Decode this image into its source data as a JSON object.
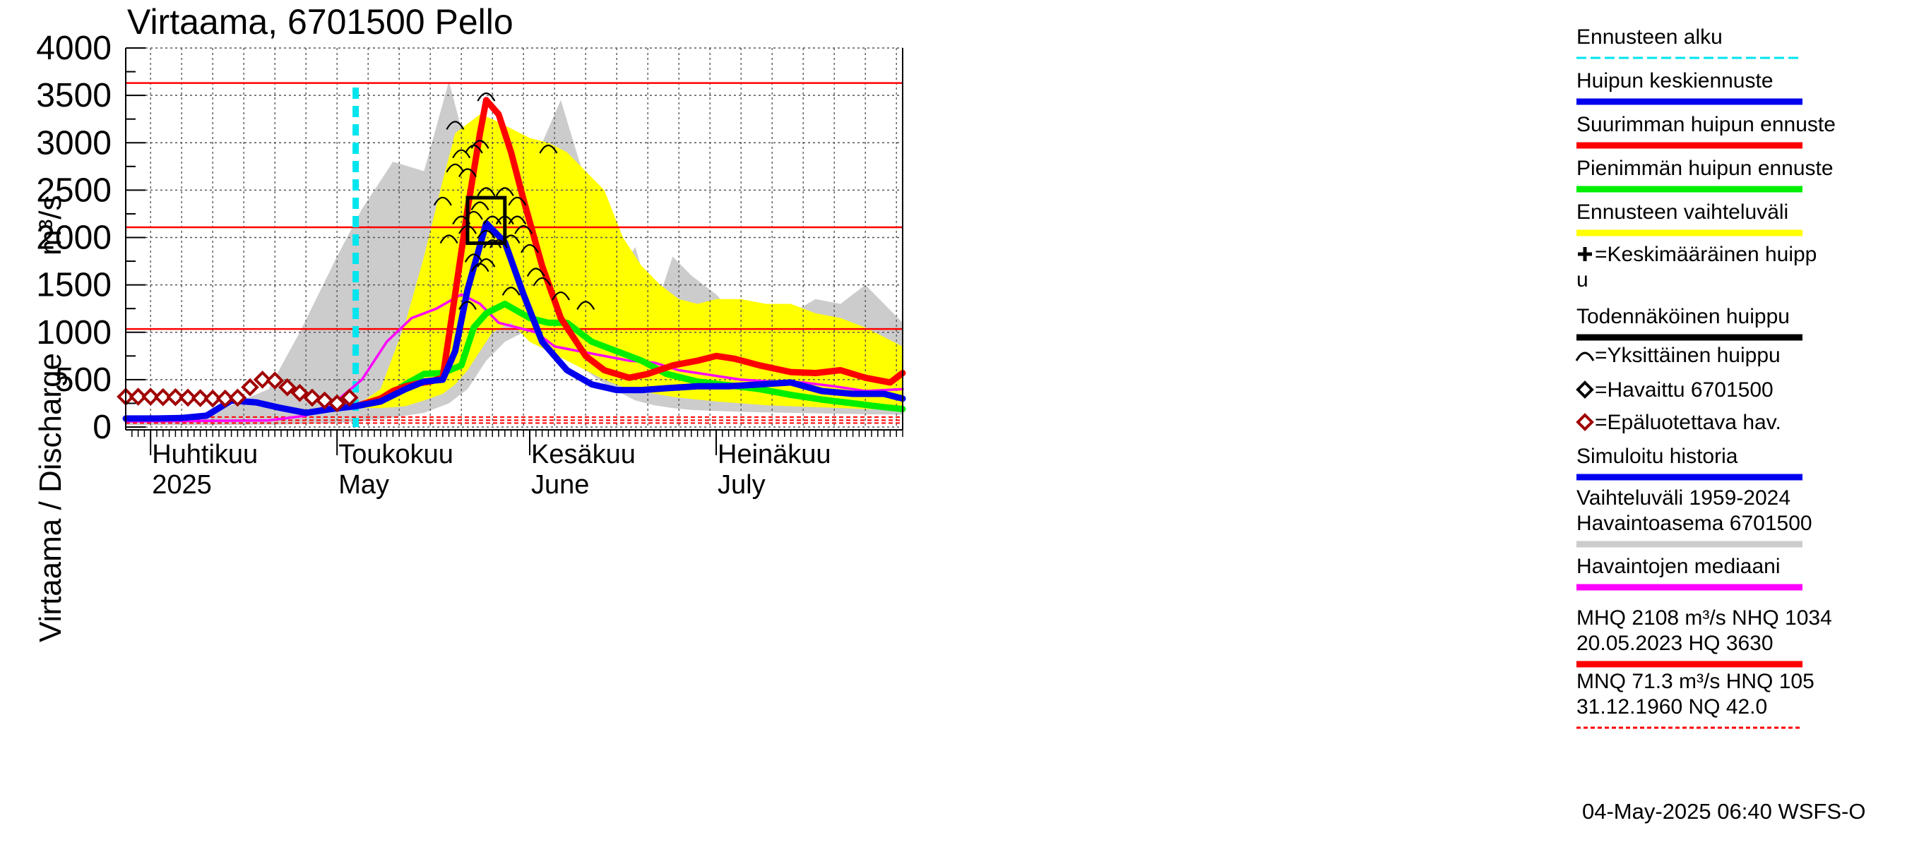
{
  "chart_data": {
    "type": "line",
    "title": "Virtaama, 6701500 Pello",
    "ylabel": "Virtaama / Discharge",
    "yunit": "m³/s",
    "ylim": [
      0,
      4000
    ],
    "yticks": [
      0,
      500,
      1000,
      1500,
      2000,
      2500,
      3000,
      3500,
      4000
    ],
    "xlim": [
      "2025-03-28",
      "2025-07-31"
    ],
    "month_labels": [
      {
        "fi": "Huhtikuu",
        "en": "2025",
        "date": "2025-04-01"
      },
      {
        "fi": "Toukokuu",
        "en": "May",
        "date": "2025-05-01"
      },
      {
        "fi": "Kesäkuu",
        "en": "June",
        "date": "2025-06-01"
      },
      {
        "fi": "Heinäkuu",
        "en": "July",
        "date": "2025-07-01"
      }
    ],
    "forecast_start": "2025-05-04",
    "reference_lines": [
      {
        "name": "HQ",
        "value": 3630
      },
      {
        "name": "MHQ",
        "value": 2108
      },
      {
        "name": "NHQ",
        "value": 1034
      },
      {
        "name": "HNQ",
        "value": 105
      },
      {
        "name": "MNQ",
        "value": 71.3
      },
      {
        "name": "NQ",
        "value": 42.0
      }
    ],
    "history_band": {
      "x": [
        "2025-03-28",
        "2025-04-10",
        "2025-04-20",
        "2025-04-25",
        "2025-05-01",
        "2025-05-05",
        "2025-05-10",
        "2025-05-15",
        "2025-05-19",
        "2025-05-22",
        "2025-05-25",
        "2025-05-28",
        "2025-05-31",
        "2025-06-03",
        "2025-06-06",
        "2025-06-09",
        "2025-06-12",
        "2025-06-15",
        "2025-06-18",
        "2025-06-21",
        "2025-06-24",
        "2025-06-27",
        "2025-07-01",
        "2025-07-05",
        "2025-07-09",
        "2025-07-13",
        "2025-07-17",
        "2025-07-21",
        "2025-07-25",
        "2025-07-31"
      ],
      "upper": [
        100,
        120,
        400,
        1000,
        1800,
        2300,
        2800,
        2700,
        3650,
        2900,
        2700,
        2800,
        2600,
        3000,
        3450,
        2800,
        2200,
        1600,
        1900,
        1200,
        1800,
        1600,
        1400,
        1100,
        1250,
        1200,
        1350,
        1300,
        1500,
        1100
      ],
      "lower": [
        20,
        20,
        25,
        30,
        40,
        60,
        100,
        150,
        250,
        400,
        700,
        900,
        1000,
        900,
        800,
        650,
        500,
        380,
        280,
        230,
        200,
        180,
        170,
        160,
        155,
        150,
        145,
        140,
        135,
        130
      ]
    },
    "forecast_band": {
      "x": [
        "2025-05-04",
        "2025-05-08",
        "2025-05-12",
        "2025-05-15",
        "2025-05-18",
        "2025-05-20",
        "2025-05-22",
        "2025-05-24",
        "2025-05-26",
        "2025-05-29",
        "2025-06-01",
        "2025-06-04",
        "2025-06-07",
        "2025-06-10",
        "2025-06-13",
        "2025-06-16",
        "2025-06-19",
        "2025-06-22",
        "2025-06-25",
        "2025-06-28",
        "2025-07-01",
        "2025-07-05",
        "2025-07-09",
        "2025-07-13",
        "2025-07-17",
        "2025-07-21",
        "2025-07-25",
        "2025-07-31"
      ],
      "upper": [
        220,
        400,
        1100,
        1800,
        2600,
        3100,
        3200,
        3300,
        3250,
        3150,
        3050,
        3000,
        2900,
        2700,
        2500,
        2000,
        1700,
        1500,
        1350,
        1300,
        1350,
        1350,
        1300,
        1300,
        1200,
        1150,
        1050,
        850
      ],
      "lower": [
        200,
        200,
        220,
        280,
        350,
        450,
        600,
        800,
        1000,
        1100,
        900,
        800,
        700,
        600,
        500,
        420,
        380,
        340,
        310,
        290,
        270,
        250,
        230,
        220,
        210,
        200,
        190,
        180
      ]
    },
    "series": [
      {
        "name": "Suurimman huipun ennuste",
        "color": "#ff0000",
        "x": [
          "2025-05-04",
          "2025-05-08",
          "2025-05-10",
          "2025-05-12",
          "2025-05-14",
          "2025-05-16",
          "2025-05-18",
          "2025-05-20",
          "2025-05-22",
          "2025-05-24",
          "2025-05-25",
          "2025-05-27",
          "2025-05-29",
          "2025-05-31",
          "2025-06-03",
          "2025-06-06",
          "2025-06-10",
          "2025-06-13",
          "2025-06-17",
          "2025-06-20",
          "2025-06-24",
          "2025-06-28",
          "2025-07-01",
          "2025-07-04",
          "2025-07-08",
          "2025-07-13",
          "2025-07-17",
          "2025-07-21",
          "2025-07-25",
          "2025-07-29",
          "2025-07-31"
        ],
        "y": [
          220,
          300,
          380,
          430,
          460,
          480,
          520,
          1400,
          2300,
          3100,
          3450,
          3300,
          2900,
          2400,
          1700,
          1150,
          750,
          600,
          520,
          560,
          650,
          700,
          750,
          720,
          650,
          580,
          570,
          600,
          520,
          470,
          570
        ]
      },
      {
        "name": "Huipun keskiennuste",
        "color": "#0000ee",
        "x": [
          "2025-03-28",
          "2025-04-02",
          "2025-04-06",
          "2025-04-10",
          "2025-04-14",
          "2025-04-18",
          "2025-04-22",
          "2025-04-26",
          "2025-04-30",
          "2025-05-04",
          "2025-05-08",
          "2025-05-12",
          "2025-05-15",
          "2025-05-18",
          "2025-05-20",
          "2025-05-22",
          "2025-05-25",
          "2025-05-28",
          "2025-05-31",
          "2025-06-03",
          "2025-06-07",
          "2025-06-11",
          "2025-06-15",
          "2025-06-19",
          "2025-06-23",
          "2025-06-28",
          "2025-07-03",
          "2025-07-08",
          "2025-07-13",
          "2025-07-18",
          "2025-07-23",
          "2025-07-28",
          "2025-07-31"
        ],
        "y": [
          90,
          90,
          95,
          120,
          280,
          260,
          200,
          150,
          190,
          220,
          270,
          400,
          480,
          500,
          800,
          1450,
          2150,
          1950,
          1400,
          900,
          600,
          450,
          390,
          390,
          410,
          430,
          430,
          450,
          470,
          380,
          350,
          350,
          300
        ]
      },
      {
        "name": "Pienimmän huipun ennuste",
        "color": "#00ee00",
        "x": [
          "2025-05-04",
          "2025-05-08",
          "2025-05-12",
          "2025-05-15",
          "2025-05-18",
          "2025-05-21",
          "2025-05-23",
          "2025-05-25",
          "2025-05-28",
          "2025-06-01",
          "2025-06-04",
          "2025-06-07",
          "2025-06-11",
          "2025-06-15",
          "2025-06-19",
          "2025-06-23",
          "2025-06-28",
          "2025-07-03",
          "2025-07-08",
          "2025-07-13",
          "2025-07-18",
          "2025-07-23",
          "2025-07-28",
          "2025-07-31"
        ],
        "y": [
          220,
          280,
          450,
          560,
          570,
          650,
          1050,
          1200,
          1300,
          1150,
          1100,
          1100,
          900,
          800,
          700,
          560,
          480,
          440,
          400,
          340,
          290,
          250,
          210,
          190
        ]
      },
      {
        "name": "Havaintojen mediaani",
        "color": "#ff00ff",
        "x": [
          "2025-03-28",
          "2025-04-10",
          "2025-04-20",
          "2025-04-26",
          "2025-05-01",
          "2025-05-05",
          "2025-05-09",
          "2025-05-13",
          "2025-05-17",
          "2025-05-21",
          "2025-05-24",
          "2025-05-27",
          "2025-05-30",
          "2025-06-02",
          "2025-06-05",
          "2025-06-09",
          "2025-06-13",
          "2025-06-17",
          "2025-06-21",
          "2025-06-25",
          "2025-06-30",
          "2025-07-05",
          "2025-07-10",
          "2025-07-15",
          "2025-07-20",
          "2025-07-25",
          "2025-07-31"
        ],
        "y": [
          60,
          65,
          70,
          120,
          280,
          500,
          900,
          1150,
          1250,
          1400,
          1300,
          1100,
          1050,
          1000,
          850,
          800,
          750,
          700,
          680,
          600,
          550,
          500,
          480,
          470,
          430,
          380,
          400
        ]
      }
    ],
    "observed": {
      "x": [
        "2025-03-28",
        "2025-03-30",
        "2025-04-01",
        "2025-04-03",
        "2025-04-05",
        "2025-04-07",
        "2025-04-09",
        "2025-04-11",
        "2025-04-13",
        "2025-04-15",
        "2025-04-17",
        "2025-04-19",
        "2025-04-21",
        "2025-04-23",
        "2025-04-25",
        "2025-04-27",
        "2025-04-29",
        "2025-05-01",
        "2025-05-03"
      ],
      "y": [
        320,
        320,
        320,
        315,
        315,
        310,
        305,
        300,
        300,
        310,
        420,
        500,
        490,
        420,
        360,
        310,
        280,
        250,
        310
      ]
    },
    "individual_peaks": {
      "x": [
        "2025-05-20",
        "2025-05-20",
        "2025-05-21",
        "2025-05-21",
        "2025-05-22",
        "2025-05-22",
        "2025-05-23",
        "2025-05-23",
        "2025-05-24",
        "2025-05-24",
        "2025-05-24",
        "2025-05-25",
        "2025-05-25",
        "2025-05-25",
        "2025-05-25",
        "2025-05-26",
        "2025-05-26",
        "2025-05-27",
        "2025-05-28",
        "2025-05-28",
        "2025-05-29",
        "2025-05-30",
        "2025-05-30",
        "2025-05-31",
        "2025-06-01",
        "2025-06-02",
        "2025-06-04",
        "2025-06-06",
        "2025-06-10",
        "2025-05-19",
        "2025-05-18",
        "2025-05-22",
        "2025-05-23",
        "2025-05-29",
        "2025-06-03"
      ],
      "y": [
        3200,
        2750,
        2900,
        2200,
        2700,
        1300,
        2950,
        2250,
        1700,
        2350,
        3000,
        3500,
        2500,
        2050,
        1750,
        2200,
        1950,
        1950,
        2500,
        2200,
        1450,
        2400,
        2200,
        2100,
        1900,
        1650,
        2950,
        1400,
        1300,
        2000,
        2400,
        2100,
        1800,
        2000,
        1550
      ]
    },
    "likely_peak": {
      "x_start": "2025-05-22",
      "x_end": "2025-05-28",
      "y_low": 1940,
      "y_high": 2420
    },
    "legend": [
      {
        "label": "Ennusteen alku",
        "color": "#00e5ee",
        "style": "dash"
      },
      {
        "label": "Huipun keskiennuste",
        "color": "#0000ee",
        "style": "line"
      },
      {
        "label": "Suurimman huipun ennuste",
        "color": "#ff0000",
        "style": "line"
      },
      {
        "label": "Pienimmän huipun ennuste",
        "color": "#00ee00",
        "style": "line"
      },
      {
        "label": "Ennusteen vaihteluväli",
        "color": "#ffff00",
        "style": "line"
      },
      {
        "label": "=Keskimääräinen huipp",
        "label2": "u",
        "color": "#000000",
        "style": "plus"
      },
      {
        "label": "Todennäköinen huippu",
        "color": "#000000",
        "style": "line"
      },
      {
        "label": "=Yksittäinen huippu",
        "color": "#000000",
        "style": "arc"
      },
      {
        "label": "=Havaittu 6701500",
        "color": "#000000",
        "style": "diamond"
      },
      {
        "label": "=Epäluotettava hav.",
        "color": "#a00000",
        "style": "diamond"
      },
      {
        "label": "Simuloitu historia",
        "color": "#0000ee",
        "style": "line"
      },
      {
        "label": "Vaihteluväli 1959-2024",
        "label2": " Havaintoasema 6701500",
        "color": "#cccccc",
        "style": "line"
      },
      {
        "label": "Havaintojen mediaani",
        "color": "#ff00ff",
        "style": "line"
      },
      {
        "label": "MHQ 2108 m³/s NHQ 1034",
        "label2": "20.05.2023 HQ 3630",
        "color": "#ff0000",
        "style": "line"
      },
      {
        "label": "MNQ 71.3 m³/s HNQ  105",
        "label2": "31.12.1960 NQ 42.0",
        "color": "#ff0000",
        "style": "dash"
      }
    ],
    "timestamp": "04-May-2025 06:40 WSFS-O"
  }
}
